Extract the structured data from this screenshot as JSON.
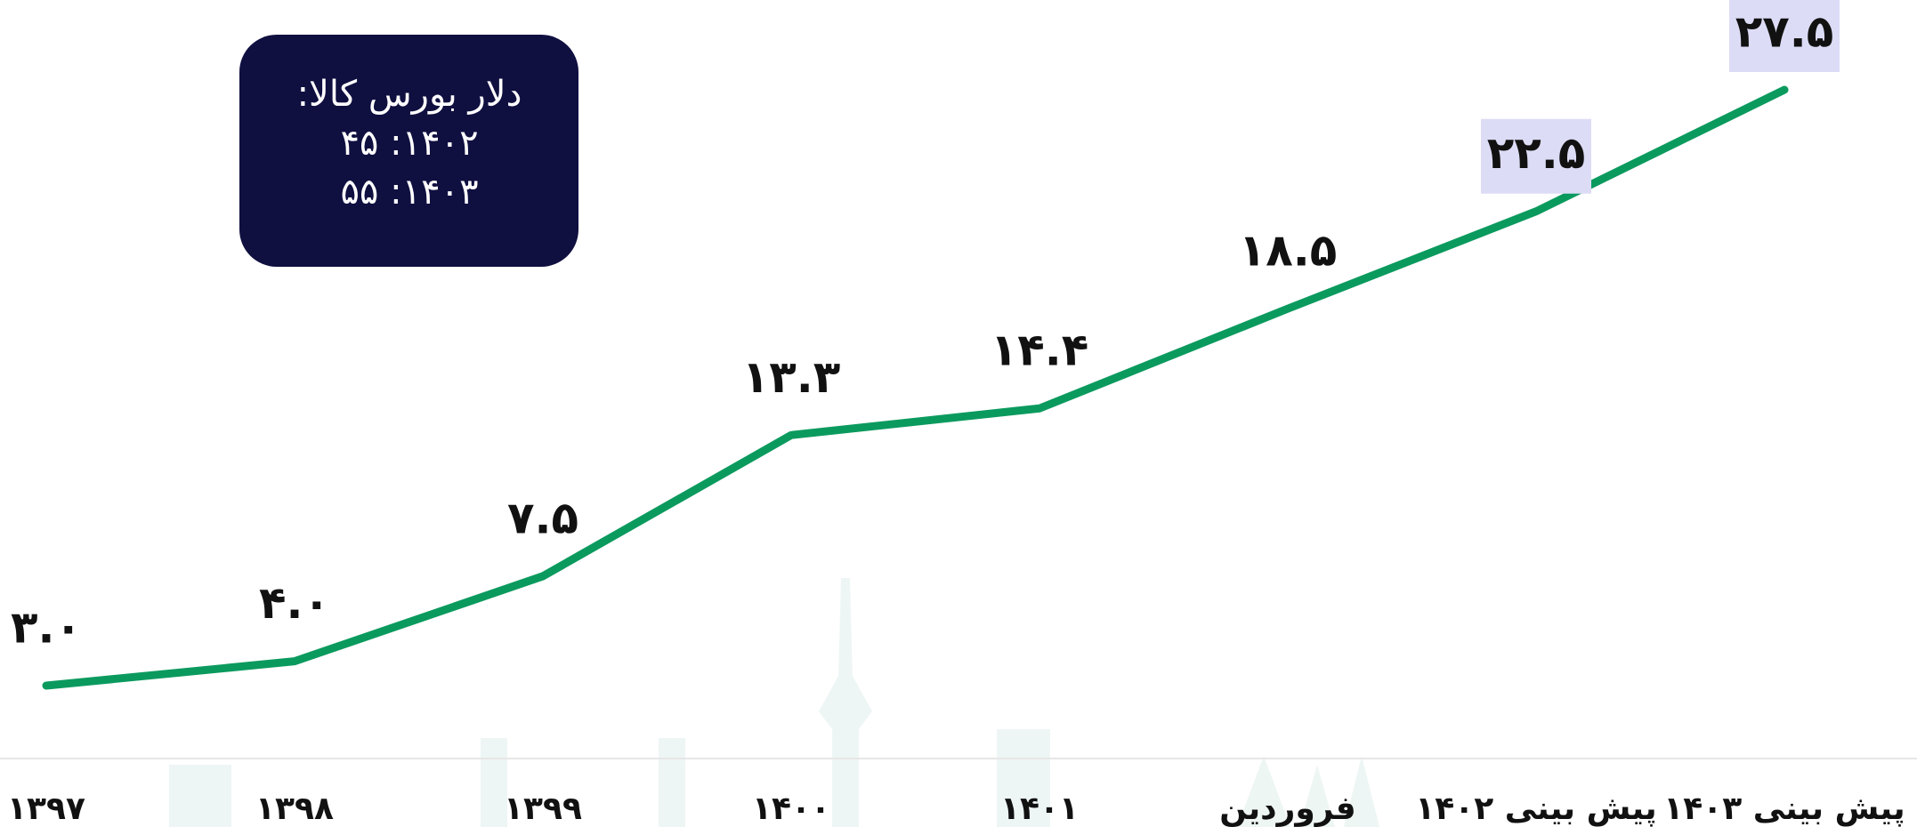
{
  "chart_data": {
    "type": "line",
    "categories": [
      "۱۳۹۷",
      "۱۳۹۸",
      "۱۳۹۹",
      "۱۴۰۰",
      "۱۴۰۱",
      "فروردین",
      "پیش بینی ۱۴۰۲",
      "پیش بینی ۱۴۰۳"
    ],
    "values": [
      3.0,
      4.0,
      7.5,
      13.3,
      14.4,
      18.5,
      22.5,
      27.5
    ],
    "value_labels": [
      "۳.۰",
      "۴.۰",
      "۷.۵",
      "۱۳.۳",
      "۱۴.۴",
      "۱۸.۵",
      "۲۲.۵",
      "۲۷.۵"
    ],
    "color": "#0b9a5e",
    "highlighted_labels": [
      6,
      7
    ],
    "highlight_color": "#dcdcf6",
    "annotation": {
      "lines": [
        "دلار بورس کالا:",
        "۱۴۰۲: ۴۵",
        "۱۴۰۳: ۵۵"
      ],
      "background": "#0f0f40"
    }
  }
}
